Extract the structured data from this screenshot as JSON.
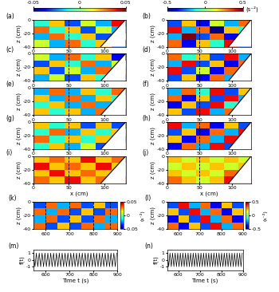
{
  "colorbars": [
    {
      "clim": [
        -0.05,
        0.05
      ],
      "ticks": [
        -0.05,
        0,
        0.05
      ]
    },
    {
      "clim": [
        -0.5,
        0.5
      ],
      "ticks": [
        -0.5,
        0,
        0.5
      ],
      "label": "(s⁻²)"
    }
  ],
  "chart_data": [
    {
      "type": "heatmap",
      "panel": "(a)",
      "ylabel": "z (cm)",
      "xlim": [
        0,
        130
      ],
      "ylim": [
        -40,
        0
      ],
      "xticks": [
        0,
        50,
        100
      ],
      "yticks": [
        -40,
        -20,
        0
      ],
      "clim": [
        -0.05,
        0.05
      ],
      "x_edges": [
        0,
        22,
        44,
        66,
        88,
        110,
        130
      ],
      "z_edges": [
        -40,
        -30,
        -20,
        -10,
        0
      ],
      "slope_x": [
        95,
        130
      ],
      "slope_z": [
        -40,
        0
      ],
      "dashed_x": [
        50
      ],
      "cells": [
        [
          0.01,
          -0.02,
          0.03,
          -0.01,
          0.02,
          -0.03
        ],
        [
          -0.02,
          0.03,
          -0.01,
          0.02,
          -0.03,
          0.01
        ],
        [
          0.03,
          -0.01,
          0.02,
          -0.03,
          0.01,
          -0.02
        ],
        [
          -0.01,
          0.02,
          -0.03,
          0.01,
          -0.02,
          0.04
        ]
      ]
    },
    {
      "type": "heatmap",
      "panel": "(b)",
      "ylabel": "z (cm)",
      "xlim": [
        0,
        130
      ],
      "ylim": [
        -40,
        0
      ],
      "xticks": [
        0,
        50,
        100
      ],
      "yticks": [
        -40,
        -20,
        0
      ],
      "clim": [
        -0.5,
        0.5
      ],
      "x_edges": [
        0,
        22,
        44,
        66,
        88,
        110,
        130
      ],
      "z_edges": [
        -40,
        -30,
        -20,
        -10,
        0
      ],
      "slope_x": [
        95,
        130
      ],
      "slope_z": [
        -40,
        0
      ],
      "dashed_x": [
        50
      ],
      "cells": [
        [
          0.3,
          -0.4,
          0.2,
          -0.1,
          0.4,
          -0.3
        ],
        [
          -0.2,
          0.5,
          -0.3,
          0.3,
          -0.4,
          0.2
        ],
        [
          0.4,
          -0.2,
          0.3,
          -0.5,
          0.2,
          -0.1
        ],
        [
          -0.3,
          0.2,
          -0.4,
          0.1,
          -0.2,
          0.3
        ]
      ]
    },
    {
      "type": "heatmap",
      "panel": "(c)",
      "ylabel": "z (cm)",
      "xlim": [
        0,
        130
      ],
      "ylim": [
        -40,
        0
      ],
      "xticks": [
        0,
        50,
        100
      ],
      "yticks": [
        -40,
        -20,
        0
      ],
      "clim": [
        -0.05,
        0.05
      ],
      "x_edges": [
        0,
        22,
        44,
        66,
        88,
        110,
        130
      ],
      "z_edges": [
        -40,
        -30,
        -20,
        -10,
        0
      ],
      "slope_x": [
        95,
        130
      ],
      "slope_z": [
        -40,
        0
      ],
      "dashed_x": [
        50
      ],
      "cells": [
        [
          -0.02,
          0.01,
          -0.03,
          0.02,
          -0.01,
          0.03
        ],
        [
          0.02,
          -0.03,
          0.01,
          -0.02,
          0.03,
          -0.01
        ],
        [
          -0.03,
          0.02,
          -0.01,
          0.03,
          -0.02,
          0.01
        ],
        [
          0.01,
          -0.02,
          0.03,
          -0.01,
          0.02,
          -0.04
        ]
      ]
    },
    {
      "type": "heatmap",
      "panel": "(d)",
      "ylabel": "z (cm)",
      "xlim": [
        0,
        130
      ],
      "ylim": [
        -40,
        0
      ],
      "xticks": [
        0,
        50,
        100
      ],
      "yticks": [
        -40,
        -20,
        0
      ],
      "clim": [
        -0.5,
        0.5
      ],
      "x_edges": [
        0,
        22,
        44,
        66,
        88,
        110,
        130
      ],
      "z_edges": [
        -40,
        -30,
        -20,
        -10,
        0
      ],
      "slope_x": [
        95,
        130
      ],
      "slope_z": [
        -40,
        0
      ],
      "dashed_x": [
        50
      ],
      "cells": [
        [
          -0.3,
          0.2,
          -0.4,
          0.3,
          -0.2,
          0.4
        ],
        [
          0.4,
          -0.3,
          0.1,
          -0.4,
          0.3,
          -0.2
        ],
        [
          -0.2,
          0.4,
          -0.3,
          0.2,
          -0.4,
          0.3
        ],
        [
          0.3,
          -0.1,
          0.2,
          -0.3,
          0.4,
          -0.2
        ]
      ]
    },
    {
      "type": "heatmap",
      "panel": "(e)",
      "ylabel": "z (cm)",
      "xlim": [
        0,
        130
      ],
      "ylim": [
        -40,
        0
      ],
      "xticks": [
        0,
        50,
        100
      ],
      "yticks": [
        -40,
        -20,
        0
      ],
      "clim": [
        -0.05,
        0.05
      ],
      "x_edges": [
        0,
        22,
        44,
        66,
        88,
        110,
        130
      ],
      "z_edges": [
        -40,
        -30,
        -20,
        -10,
        0
      ],
      "slope_x": [
        95,
        130
      ],
      "slope_z": [
        -40,
        0
      ],
      "dashed_x": [
        50
      ],
      "cells": [
        [
          0.02,
          -0.01,
          0.02,
          -0.02,
          0.03,
          -0.02
        ],
        [
          -0.01,
          0.02,
          -0.02,
          0.03,
          -0.02,
          0.02
        ],
        [
          0.02,
          -0.02,
          0.03,
          -0.02,
          0.02,
          -0.01
        ],
        [
          -0.02,
          0.03,
          -0.02,
          0.02,
          -0.01,
          0.03
        ]
      ]
    },
    {
      "type": "heatmap",
      "panel": "(f)",
      "ylabel": "z (cm)",
      "xlim": [
        0,
        130
      ],
      "ylim": [
        -40,
        0
      ],
      "xticks": [
        0,
        50,
        100
      ],
      "yticks": [
        -40,
        -20,
        0
      ],
      "clim": [
        -0.5,
        0.5
      ],
      "x_edges": [
        0,
        22,
        44,
        66,
        88,
        110,
        130
      ],
      "z_edges": [
        -40,
        -30,
        -20,
        -10,
        0
      ],
      "slope_x": [
        95,
        130
      ],
      "slope_z": [
        -40,
        0
      ],
      "dashed_x": [
        50
      ],
      "cells": [
        [
          0.2,
          -0.3,
          0.4,
          -0.2,
          0.3,
          -0.4
        ],
        [
          -0.4,
          0.2,
          -0.3,
          0.4,
          -0.1,
          0.3
        ],
        [
          0.3,
          -0.4,
          0.2,
          -0.3,
          0.4,
          -0.2
        ],
        [
          -0.2,
          0.3,
          -0.1,
          0.4,
          -0.3,
          0.2
        ]
      ]
    },
    {
      "type": "heatmap",
      "panel": "(g)",
      "ylabel": "z (cm)",
      "xlim": [
        0,
        130
      ],
      "ylim": [
        -40,
        0
      ],
      "xticks": [
        0,
        50,
        100
      ],
      "yticks": [
        -40,
        -20,
        0
      ],
      "clim": [
        -0.05,
        0.05
      ],
      "x_edges": [
        0,
        22,
        44,
        66,
        88,
        110,
        130
      ],
      "z_edges": [
        -40,
        -30,
        -20,
        -10,
        0
      ],
      "slope_x": [
        95,
        130
      ],
      "slope_z": [
        -40,
        0
      ],
      "dashed_x": [
        50
      ],
      "cells": [
        [
          -0.01,
          0.02,
          -0.02,
          0.01,
          -0.03,
          0.02
        ],
        [
          0.03,
          -0.01,
          0.02,
          -0.01,
          0.02,
          -0.02
        ],
        [
          -0.01,
          0.03,
          -0.02,
          0.02,
          -0.01,
          0.02
        ],
        [
          0.02,
          -0.01,
          0.02,
          -0.03,
          0.02,
          -0.03
        ]
      ]
    },
    {
      "type": "heatmap",
      "panel": "(h)",
      "ylabel": "z (cm)",
      "xlim": [
        0,
        130
      ],
      "ylim": [
        -40,
        0
      ],
      "xticks": [
        0,
        50,
        100
      ],
      "yticks": [
        -40,
        -20,
        0
      ],
      "clim": [
        -0.5,
        0.5
      ],
      "x_edges": [
        0,
        22,
        44,
        66,
        88,
        110,
        130
      ],
      "z_edges": [
        -40,
        -30,
        -20,
        -10,
        0
      ],
      "slope_x": [
        95,
        130
      ],
      "slope_z": [
        -40,
        0
      ],
      "dashed_x": [
        50
      ],
      "cells": [
        [
          -0.4,
          0.3,
          -0.2,
          0.4,
          -0.3,
          0.2
        ],
        [
          0.2,
          -0.4,
          0.3,
          -0.2,
          0.4,
          -0.3
        ],
        [
          -0.3,
          0.2,
          -0.4,
          0.3,
          -0.2,
          0.4
        ],
        [
          0.4,
          -0.2,
          0.3,
          -0.4,
          0.2,
          -0.3
        ]
      ]
    },
    {
      "type": "heatmap",
      "panel": "(i)",
      "xlabel": "x (cm)",
      "ylabel": "z (cm)",
      "xlim": [
        0,
        130
      ],
      "ylim": [
        -40,
        0
      ],
      "xticks": [
        0,
        50,
        100
      ],
      "yticks": [
        -40,
        -20,
        0
      ],
      "clim": [
        -0.05,
        0.05
      ],
      "x_edges": [
        0,
        22,
        44,
        66,
        88,
        110,
        130
      ],
      "z_edges": [
        -40,
        -30,
        -20,
        -10,
        0
      ],
      "slope_x": [
        95,
        130
      ],
      "slope_z": [
        -40,
        0
      ],
      "dashed_x": [
        50
      ],
      "cells": [
        [
          0.03,
          0.02,
          0.04,
          0.02,
          0.03,
          0.03
        ],
        [
          0.02,
          0.04,
          0.02,
          0.03,
          0.02,
          0.02
        ],
        [
          0.04,
          0.02,
          0.03,
          0.02,
          0.04,
          0.02
        ],
        [
          0.02,
          0.03,
          0.02,
          0.04,
          0.02,
          0.03
        ]
      ]
    },
    {
      "type": "heatmap",
      "panel": "(j)",
      "xlabel": "x (cm)",
      "ylabel": "z (cm)",
      "xlim": [
        0,
        130
      ],
      "ylim": [
        -40,
        0
      ],
      "xticks": [
        0,
        50,
        100
      ],
      "yticks": [
        -40,
        -20,
        0
      ],
      "clim": [
        -0.5,
        0.5
      ],
      "x_edges": [
        0,
        22,
        44,
        66,
        88,
        110,
        130
      ],
      "z_edges": [
        -40,
        -30,
        -20,
        -10,
        0
      ],
      "slope_x": [
        95,
        130
      ],
      "slope_z": [
        -40,
        0
      ],
      "dashed_x": [
        50
      ],
      "cells": [
        [
          0.3,
          0.2,
          0.1,
          0.2,
          0.4,
          0.5
        ],
        [
          0.2,
          0.1,
          0.2,
          0.1,
          0.3,
          0.2
        ],
        [
          0.1,
          0.2,
          0.1,
          0.2,
          0.1,
          0.2
        ],
        [
          0.2,
          0.1,
          0.2,
          0.1,
          0.2,
          0.1
        ]
      ]
    },
    {
      "type": "heatmap",
      "panel": "(k)",
      "ylabel": "z (cm)",
      "xlim": [
        550,
        900
      ],
      "ylim": [
        -40,
        0
      ],
      "xticks": [
        600,
        700,
        800,
        900
      ],
      "yticks": [
        -40,
        -20,
        0
      ],
      "clim": [
        -0.05,
        0.05
      ],
      "x_edges": [
        550,
        600,
        650,
        700,
        750,
        800,
        850,
        900
      ],
      "z_edges": [
        -40,
        -30,
        -20,
        -10,
        0
      ],
      "dashed_x": [
        600,
        700,
        800,
        870
      ],
      "colorbar": {
        "ticks": [
          -0.05,
          0,
          0.05
        ],
        "label": "(s⁻²)"
      },
      "cells": [
        [
          0.03,
          -0.03,
          0.02,
          -0.03,
          0.03,
          -0.02,
          0.03
        ],
        [
          -0.02,
          0.03,
          -0.03,
          0.02,
          -0.03,
          0.03,
          -0.02
        ],
        [
          0.03,
          -0.02,
          0.03,
          -0.03,
          0.02,
          -0.03,
          0.03
        ],
        [
          -0.03,
          0.03,
          -0.02,
          0.03,
          -0.03,
          0.02,
          -0.03
        ]
      ]
    },
    {
      "type": "heatmap",
      "panel": "(l)",
      "ylabel": "z (cm)",
      "xlim": [
        550,
        900
      ],
      "ylim": [
        -40,
        0
      ],
      "xticks": [
        600,
        700,
        800,
        900
      ],
      "yticks": [
        -40,
        -20,
        0
      ],
      "clim": [
        -0.5,
        0.5
      ],
      "x_edges": [
        550,
        600,
        650,
        700,
        750,
        800,
        850,
        900
      ],
      "z_edges": [
        -40,
        -30,
        -20,
        -10,
        0
      ],
      "colorbar": {
        "ticks": [
          -0.5,
          0,
          0.5
        ],
        "label": "(s⁻²)"
      },
      "cells": [
        [
          0.3,
          -0.4,
          0.2,
          -0.3,
          0.4,
          -0.2,
          0.3
        ],
        [
          -0.4,
          0.2,
          -0.3,
          0.4,
          -0.2,
          0.3,
          -0.4
        ],
        [
          0.2,
          -0.3,
          0.4,
          -0.2,
          0.3,
          -0.4,
          0.2
        ],
        [
          -0.3,
          0.4,
          -0.2,
          0.3,
          -0.4,
          0.2,
          -0.3
        ]
      ]
    },
    {
      "type": "line",
      "panel": "(m)",
      "xlabel": "Time t (s)",
      "ylabel": "f(t)",
      "xlim": [
        550,
        900
      ],
      "ylim": [
        -1.5,
        1.5
      ],
      "xticks": [
        600,
        700,
        800,
        900
      ],
      "yticks": [
        -1,
        0,
        1
      ],
      "color": "black",
      "x": [
        550,
        556,
        562,
        568,
        574,
        580,
        586,
        592,
        598,
        604,
        610,
        616,
        622,
        628,
        634,
        640,
        646,
        652,
        658,
        664,
        670,
        676,
        682,
        688,
        694,
        700,
        706,
        712,
        718,
        724,
        730,
        736,
        742,
        748,
        754,
        760,
        766,
        772,
        778,
        784,
        790,
        796,
        802,
        808,
        814,
        820,
        826,
        832,
        838,
        844,
        850,
        856,
        862,
        868,
        874,
        880,
        886,
        892,
        898
      ],
      "values": [
        1,
        -1,
        1,
        -1,
        1,
        -1,
        1,
        -1,
        1,
        -1,
        1,
        -1,
        1,
        -1,
        1,
        -1,
        1,
        -1,
        1,
        -1,
        1,
        -1,
        1,
        -1,
        1,
        -1,
        1,
        -1,
        1,
        -1,
        1,
        -1,
        1,
        -1,
        1,
        -1,
        1,
        -1,
        1,
        -1,
        1,
        -1,
        1,
        -1,
        1,
        -1,
        1,
        -1,
        1,
        -1,
        1,
        -1,
        1,
        -1,
        1,
        -1,
        1,
        -1,
        1
      ]
    },
    {
      "type": "line",
      "panel": "(n)",
      "xlabel": "Time t (s)",
      "ylabel": "f(t)",
      "xlim": [
        550,
        900
      ],
      "ylim": [
        -1.5,
        1.5
      ],
      "xticks": [
        600,
        700,
        800,
        900
      ],
      "yticks": [
        -1,
        0,
        1
      ],
      "color": "black",
      "x": [
        550,
        556,
        562,
        568,
        574,
        580,
        586,
        592,
        598,
        604,
        610,
        616,
        622,
        628,
        634,
        640,
        646,
        652,
        658,
        664,
        670,
        676,
        682,
        688,
        694,
        700,
        706,
        712,
        718,
        724,
        730,
        736,
        742,
        748,
        754,
        760,
        766,
        772,
        778,
        784,
        790,
        796,
        802,
        808,
        814,
        820,
        826,
        832,
        838,
        844,
        850,
        856,
        862,
        868,
        874,
        880,
        886,
        892,
        898
      ],
      "values": [
        1,
        -1,
        1,
        -1,
        1,
        -1,
        1,
        -1,
        1,
        -1,
        1,
        -1,
        1,
        -1,
        1,
        -1,
        1,
        -1,
        1,
        -1,
        1,
        -1,
        1,
        -1,
        1,
        -1,
        1,
        -1,
        1,
        -1,
        1,
        -1,
        1,
        -1,
        1,
        -1,
        1,
        -1,
        1,
        -1,
        1,
        -1,
        1,
        -1,
        1,
        -1,
        1,
        -1,
        1,
        -1,
        1,
        -1,
        1,
        -1,
        1,
        -1,
        1,
        -1,
        1
      ]
    }
  ]
}
